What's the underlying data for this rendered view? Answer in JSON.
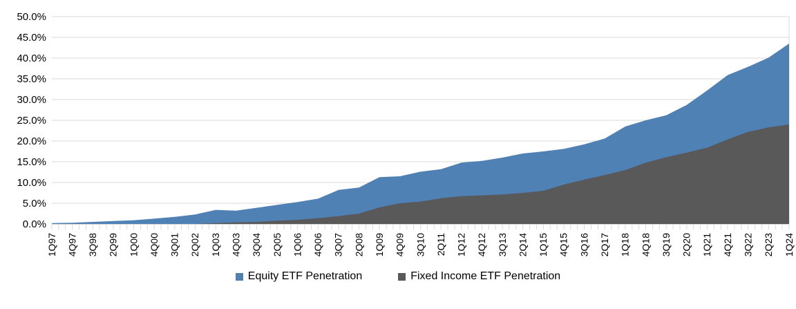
{
  "chart_data": {
    "type": "area",
    "title": "",
    "overlay": true,
    "grid": true,
    "legend_position": "bottom",
    "categories": [
      "1Q97",
      "4Q97",
      "3Q98",
      "2Q99",
      "1Q00",
      "4Q00",
      "3Q01",
      "2Q02",
      "1Q03",
      "4Q03",
      "3Q04",
      "2Q05",
      "1Q06",
      "4Q06",
      "3Q07",
      "2Q08",
      "1Q09",
      "4Q09",
      "3Q10",
      "2Q11",
      "1Q12",
      "4Q12",
      "3Q13",
      "2Q14",
      "1Q15",
      "4Q15",
      "3Q16",
      "2Q17",
      "1Q18",
      "4Q18",
      "3Q19",
      "2Q20",
      "1Q21",
      "4Q21",
      "3Q22",
      "2Q23",
      "1Q24"
    ],
    "x_axis": {
      "minor_ticks_between_labels": 3,
      "label_rotation_degrees": -90
    },
    "y_axis": {
      "min": 0,
      "max": 50,
      "step": 5,
      "format": "percent",
      "tick_labels": [
        "0.0%",
        "5.0%",
        "10.0%",
        "15.0%",
        "20.0%",
        "25.0%",
        "30.0%",
        "35.0%",
        "40.0%",
        "45.0%",
        "50.0%"
      ]
    },
    "series": [
      {
        "name": "Equity ETF Penetration",
        "color": "#4f81b4",
        "values": [
          0.2,
          0.3,
          0.5,
          0.7,
          0.9,
          1.3,
          1.7,
          2.3,
          3.4,
          3.2,
          3.9,
          4.6,
          5.3,
          6.1,
          8.2,
          8.8,
          11.3,
          11.5,
          12.6,
          13.2,
          14.8,
          15.2,
          16.0,
          17.0,
          17.5,
          18.1,
          19.2,
          20.6,
          23.5,
          25.0,
          26.2,
          28.7,
          32.2,
          35.9,
          37.9,
          40.1,
          43.5
        ]
      },
      {
        "name": "Fixed Income ETF Penetration",
        "color": "#595959",
        "values": [
          0,
          0,
          0,
          0,
          0,
          0,
          0,
          0,
          0.2,
          0.4,
          0.5,
          0.8,
          1.0,
          1.4,
          1.9,
          2.5,
          4.0,
          5.0,
          5.4,
          6.2,
          6.7,
          6.9,
          7.1,
          7.5,
          8.0,
          9.5,
          10.7,
          11.8,
          13.0,
          14.8,
          16.1,
          17.2,
          18.4,
          20.4,
          22.2,
          23.3,
          24.0
        ]
      }
    ],
    "colors": {
      "gridline": "#d9d9d9",
      "tick": "#d9d9d9",
      "axis_text": "#000000",
      "background": "#ffffff"
    }
  }
}
